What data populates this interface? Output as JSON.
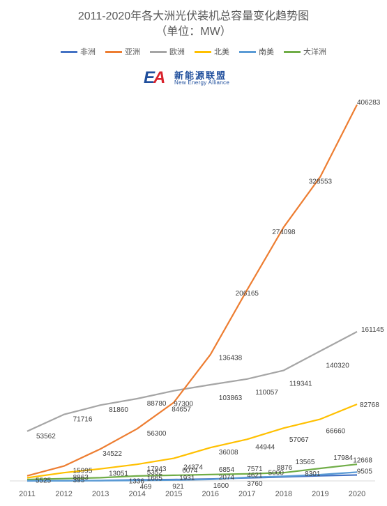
{
  "chart_data": {
    "type": "line",
    "title": "2011-2020年各大洲光伏装机总容量变化趋势图",
    "subtitle": "（单位：MW）",
    "x": [
      "2011",
      "2012",
      "2013",
      "2014",
      "2015",
      "2016",
      "2017",
      "2018",
      "2019",
      "2020"
    ],
    "ylim": [
      0,
      420000
    ],
    "grid": false,
    "legend_position": "top",
    "series": [
      {
        "name": "非洲",
        "color": "#4472c4",
        "values": [
          30,
          200,
          400,
          1100,
          1500,
          2100,
          3200,
          4300,
          5600,
          6400
        ]
      },
      {
        "name": "亚洲",
        "color": "#ed7d31",
        "values": [
          5525,
          15995,
          34522,
          56300,
          84657,
          136438,
          206165,
          274098,
          328553,
          406283
        ]
      },
      {
        "name": "欧洲",
        "color": "#a5a5a5",
        "values": [
          53562,
          71716,
          81860,
          88780,
          97300,
          103863,
          110057,
          119341,
          140320,
          161145
        ]
      },
      {
        "name": "北美",
        "color": "#ffc000",
        "values": [
          3400,
          8863,
          13051,
          17943,
          24374,
          36008,
          44944,
          57067,
          66660,
          82768
        ]
      },
      {
        "name": "南美",
        "color": "#5b9bd5",
        "values": [
          50,
          100,
          300,
          469,
          921,
          1600,
          3760,
          5000,
          6800,
          9505
        ]
      },
      {
        "name": "大洋洲",
        "color": "#70ad47",
        "values": [
          1500,
          2500,
          3500,
          5352,
          6074,
          6854,
          7571,
          8876,
          13565,
          17984
        ]
      }
    ],
    "data_labels": [
      {
        "text": "406283",
        "series": 1,
        "index": 9,
        "anchor": "start"
      },
      {
        "text": "328553",
        "series": 1,
        "index": 8,
        "anchor": "middle",
        "dy": 10
      },
      {
        "text": "274098",
        "series": 1,
        "index": 7,
        "anchor": "middle",
        "dy": 10
      },
      {
        "text": "206165",
        "series": 1,
        "index": 6,
        "anchor": "middle",
        "dy": 8
      },
      {
        "text": "136438",
        "series": 1,
        "index": 5,
        "anchor": "start",
        "dx": 12,
        "dy": 8
      },
      {
        "text": "84657",
        "series": 1,
        "index": 4,
        "anchor": "start",
        "dx": -3,
        "dy": 13
      },
      {
        "text": "56300",
        "series": 1,
        "index": 3,
        "anchor": "start",
        "dx": 14,
        "dy": 10
      },
      {
        "text": "34522",
        "series": 1,
        "index": 2,
        "anchor": "start",
        "dx": 3,
        "dy": 10
      },
      {
        "text": "15995",
        "series": 1,
        "index": 1,
        "anchor": "start",
        "dx": 13,
        "dy": 10
      },
      {
        "text": "5525",
        "series": 1,
        "index": 0,
        "anchor": "start",
        "dx": 12,
        "dy": 10
      },
      {
        "text": "161145",
        "series": 2,
        "index": 9,
        "anchor": "start",
        "dx": 6,
        "dy": 0
      },
      {
        "text": "140320",
        "series": 2,
        "index": 8,
        "anchor": "start",
        "dx": 8,
        "dy": 24
      },
      {
        "text": "119341",
        "series": 2,
        "index": 7,
        "anchor": "start",
        "dx": 8,
        "dy": 22
      },
      {
        "text": "110057",
        "series": 2,
        "index": 6,
        "anchor": "start",
        "dx": 12,
        "dy": 22
      },
      {
        "text": "103863",
        "series": 2,
        "index": 5,
        "anchor": "start",
        "dx": 12,
        "dy": 22
      },
      {
        "text": "97300",
        "series": 2,
        "index": 4,
        "anchor": "start",
        "dx": 0,
        "dy": 22
      },
      {
        "text": "88780",
        "series": 2,
        "index": 3,
        "anchor": "start",
        "dx": 14,
        "dy": 10
      },
      {
        "text": "81860",
        "series": 2,
        "index": 2,
        "anchor": "start",
        "dx": 12,
        "dy": 10
      },
      {
        "text": "71716",
        "series": 2,
        "index": 1,
        "anchor": "start",
        "dx": 13,
        "dy": 10
      },
      {
        "text": "53562",
        "series": 2,
        "index": 0,
        "anchor": "start",
        "dx": 13,
        "dy": 10
      },
      {
        "text": "82768",
        "series": 3,
        "index": 9,
        "anchor": "start",
        "dx": 4,
        "dy": 4
      },
      {
        "text": "66660",
        "series": 3,
        "index": 8,
        "anchor": "start",
        "dx": 8,
        "dy": 20
      },
      {
        "text": "57067",
        "series": 3,
        "index": 7,
        "anchor": "start",
        "dx": 8,
        "dy": 20
      },
      {
        "text": "44944",
        "series": 3,
        "index": 6,
        "anchor": "start",
        "dx": 12,
        "dy": 14
      },
      {
        "text": "36008",
        "series": 3,
        "index": 5,
        "anchor": "start",
        "dx": 12,
        "dy": 10
      },
      {
        "text": "24374",
        "series": 3,
        "index": 4,
        "anchor": "start",
        "dx": 14,
        "dy": 16
      },
      {
        "text": "17943",
        "series": 3,
        "index": 3,
        "anchor": "start",
        "dx": 14,
        "dy": 10
      },
      {
        "text": "13051",
        "series": 3,
        "index": 2,
        "anchor": "start",
        "dx": 12,
        "dy": 10
      },
      {
        "text": "8863",
        "series": 3,
        "index": 1,
        "anchor": "start",
        "dx": 13,
        "dy": 10
      },
      {
        "text": "17984",
        "series": 5,
        "index": 9,
        "anchor": "end",
        "dx": -6,
        "dy": -6
      },
      {
        "text": "13565",
        "series": 5,
        "index": 8,
        "anchor": "end",
        "dx": -8,
        "dy": -6
      },
      {
        "text": "8876",
        "series": 5,
        "index": 7,
        "anchor": "start",
        "dx": -10,
        "dy": -4
      },
      {
        "text": "7571",
        "series": 5,
        "index": 6,
        "anchor": "start",
        "dx": 0,
        "dy": -4
      },
      {
        "text": "6854",
        "series": 5,
        "index": 5,
        "anchor": "start",
        "dx": 12,
        "dy": -4
      },
      {
        "text": "6074",
        "series": 5,
        "index": 4,
        "anchor": "start",
        "dx": 12,
        "dy": -4
      },
      {
        "text": "5352",
        "series": 5,
        "index": 3,
        "anchor": "start",
        "dx": 14,
        "dy": -2
      },
      {
        "text": "12668",
        "series": 4,
        "index": 9,
        "anchor": "end",
        "dx": 22,
        "dy": -14
      },
      {
        "text": "9505",
        "series": 4,
        "index": 9,
        "anchor": "end",
        "dx": 22,
        "dy": 2
      },
      {
        "text": "8301",
        "series": 4,
        "index": 8,
        "anchor": "end",
        "dx": 0,
        "dy": 2
      },
      {
        "text": "5000",
        "series": 4,
        "index": 7,
        "anchor": "end",
        "dx": 0,
        "dy": -2
      },
      {
        "text": "4621",
        "series": 4,
        "index": 6,
        "anchor": "start",
        "dx": 0,
        "dy": 0
      },
      {
        "text": "3760",
        "series": 4,
        "index": 6,
        "anchor": "start",
        "dx": 0,
        "dy": 12
      },
      {
        "text": "2074",
        "series": 4,
        "index": 5,
        "anchor": "start",
        "dx": 12,
        "dy": 0
      },
      {
        "text": "1600",
        "series": 4,
        "index": 5,
        "anchor": "start",
        "dx": 4,
        "dy": 12
      },
      {
        "text": "1931",
        "series": 4,
        "index": 4,
        "anchor": "start",
        "dx": 8,
        "dy": 0
      },
      {
        "text": "921",
        "series": 4,
        "index": 4,
        "anchor": "start",
        "dx": -2,
        "dy": 12
      },
      {
        "text": "1665",
        "series": 4,
        "index": 3,
        "anchor": "start",
        "dx": 14,
        "dy": 0
      },
      {
        "text": "469",
        "series": 4,
        "index": 3,
        "anchor": "start",
        "dx": 4,
        "dy": 12
      },
      {
        "text": "1336",
        "series": 4,
        "index": 3,
        "anchor": "start",
        "dx": -12,
        "dy": 4
      },
      {
        "text": "395",
        "series": 4,
        "index": 1,
        "anchor": "start",
        "dx": 13,
        "dy": 2
      }
    ]
  },
  "logo": {
    "mark_primary": "E",
    "mark_accent": "A",
    "name_cn": "新能源联盟",
    "name_en": "New Energy  Alliance"
  }
}
